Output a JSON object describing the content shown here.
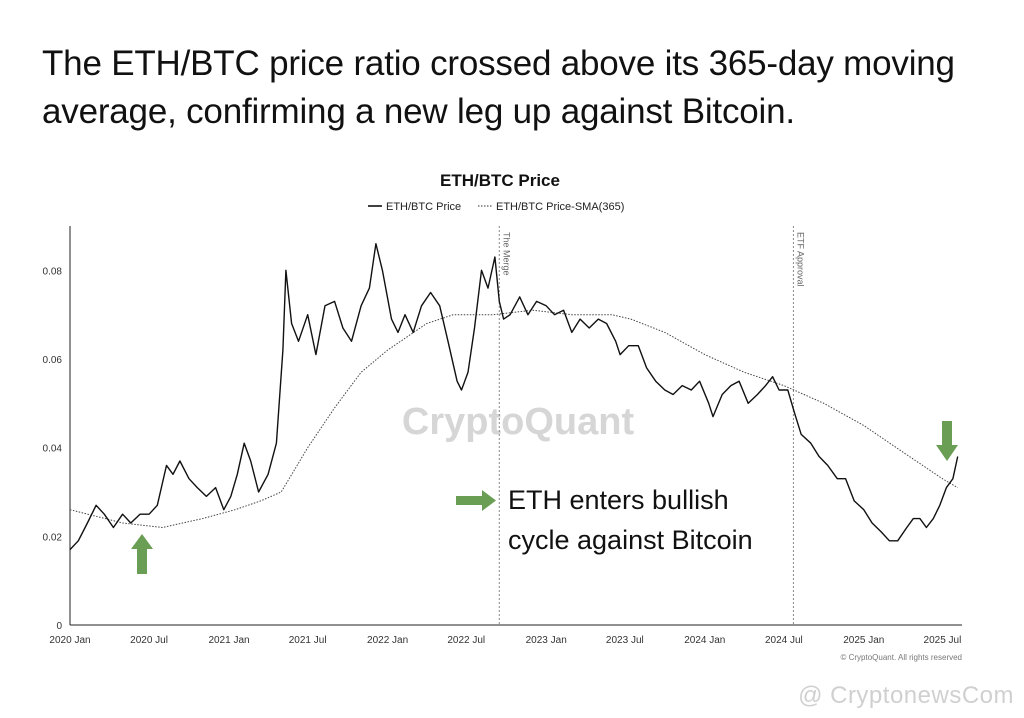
{
  "headline": "The ETH/BTC price ratio crossed above its 365-day moving average, confirming a new leg up against Bitcoin.",
  "watermarks": {
    "center": "CryptoQuant",
    "bottom_right": "@ CryptonewsCom"
  },
  "annotation": {
    "line1": "ETH enters bullish",
    "line2": "cycle against Bitcoin",
    "arrow_color": "#6a9e55"
  },
  "chart_data": {
    "type": "line",
    "title": "ETH/BTC Price",
    "legend": [
      {
        "name": "ETH/BTC Price",
        "style": "solid"
      },
      {
        "name": "ETH/BTC Price-SMA(365)",
        "style": "dotted"
      }
    ],
    "legend_position": "top-center",
    "grid": false,
    "x_tick_labels": [
      "2020 Jan",
      "2020 Jul",
      "2021 Jan",
      "2021 Jul",
      "2022 Jan",
      "2022 Jul",
      "2023 Jan",
      "2023 Jul",
      "2024 Jan",
      "2024 Jul",
      "2025 Jan",
      "2025 Jul"
    ],
    "xlim": [
      "2020-01-01",
      "2025-08-15"
    ],
    "y_tick_labels": [
      "0",
      "0.02",
      "0.04",
      "0.06",
      "0.08"
    ],
    "ylim": [
      0,
      0.09
    ],
    "vertical_markers": [
      {
        "label": "The Merge",
        "date": "2022-09-15"
      },
      {
        "label": "ETF Approval",
        "date": "2024-07-23"
      }
    ],
    "copyright": "© CryptoQuant. All rights reserved",
    "series": [
      {
        "name": "ETH/BTC Price",
        "x": [
          "2020-01-01",
          "2020-01-20",
          "2020-02-10",
          "2020-03-01",
          "2020-03-20",
          "2020-04-10",
          "2020-05-01",
          "2020-05-20",
          "2020-06-10",
          "2020-07-01",
          "2020-07-20",
          "2020-08-10",
          "2020-08-25",
          "2020-09-10",
          "2020-10-01",
          "2020-10-20",
          "2020-11-10",
          "2020-12-01",
          "2020-12-20",
          "2021-01-05",
          "2021-01-20",
          "2021-02-05",
          "2021-02-20",
          "2021-03-10",
          "2021-04-01",
          "2021-04-20",
          "2021-05-05",
          "2021-05-12",
          "2021-05-25",
          "2021-06-10",
          "2021-07-01",
          "2021-07-20",
          "2021-08-10",
          "2021-09-01",
          "2021-09-20",
          "2021-10-10",
          "2021-11-01",
          "2021-11-20",
          "2021-12-05",
          "2021-12-20",
          "2022-01-10",
          "2022-01-25",
          "2022-02-10",
          "2022-03-01",
          "2022-03-20",
          "2022-04-10",
          "2022-05-01",
          "2022-05-20",
          "2022-06-10",
          "2022-06-20",
          "2022-07-05",
          "2022-07-20",
          "2022-08-05",
          "2022-08-20",
          "2022-09-05",
          "2022-09-15",
          "2022-09-25",
          "2022-10-10",
          "2022-11-01",
          "2022-11-20",
          "2022-12-10",
          "2023-01-01",
          "2023-01-20",
          "2023-02-10",
          "2023-03-01",
          "2023-03-20",
          "2023-04-10",
          "2023-05-01",
          "2023-05-20",
          "2023-06-10",
          "2023-06-20",
          "2023-07-10",
          "2023-08-01",
          "2023-08-20",
          "2023-09-10",
          "2023-10-01",
          "2023-10-20",
          "2023-11-10",
          "2023-12-01",
          "2023-12-20",
          "2024-01-10",
          "2024-01-20",
          "2024-02-10",
          "2024-03-01",
          "2024-03-20",
          "2024-04-10",
          "2024-05-01",
          "2024-05-20",
          "2024-06-05",
          "2024-06-20",
          "2024-07-10",
          "2024-07-25",
          "2024-08-10",
          "2024-09-01",
          "2024-09-20",
          "2024-10-10",
          "2024-11-01",
          "2024-11-20",
          "2024-12-10",
          "2025-01-01",
          "2025-01-20",
          "2025-02-10",
          "2025-03-01",
          "2025-03-20",
          "2025-04-10",
          "2025-04-25",
          "2025-05-10",
          "2025-05-25",
          "2025-06-10",
          "2025-06-25",
          "2025-07-10",
          "2025-07-25",
          "2025-08-05"
        ],
        "values": [
          0.017,
          0.019,
          0.023,
          0.027,
          0.025,
          0.022,
          0.025,
          0.023,
          0.025,
          0.025,
          0.027,
          0.036,
          0.034,
          0.037,
          0.033,
          0.031,
          0.029,
          0.031,
          0.026,
          0.029,
          0.034,
          0.041,
          0.037,
          0.03,
          0.034,
          0.041,
          0.062,
          0.08,
          0.068,
          0.064,
          0.07,
          0.061,
          0.072,
          0.073,
          0.067,
          0.064,
          0.072,
          0.076,
          0.086,
          0.08,
          0.069,
          0.066,
          0.07,
          0.066,
          0.072,
          0.075,
          0.072,
          0.064,
          0.055,
          0.053,
          0.057,
          0.067,
          0.08,
          0.076,
          0.083,
          0.073,
          0.069,
          0.07,
          0.074,
          0.07,
          0.073,
          0.072,
          0.07,
          0.071,
          0.066,
          0.069,
          0.067,
          0.069,
          0.068,
          0.064,
          0.061,
          0.063,
          0.063,
          0.058,
          0.055,
          0.053,
          0.052,
          0.054,
          0.053,
          0.055,
          0.05,
          0.047,
          0.052,
          0.054,
          0.055,
          0.05,
          0.052,
          0.054,
          0.056,
          0.053,
          0.053,
          0.048,
          0.043,
          0.041,
          0.038,
          0.036,
          0.033,
          0.033,
          0.028,
          0.026,
          0.023,
          0.021,
          0.019,
          0.019,
          0.022,
          0.024,
          0.024,
          0.022,
          0.024,
          0.027,
          0.031,
          0.033,
          0.038
        ]
      },
      {
        "name": "ETH/BTC Price-SMA(365)",
        "x": [
          "2020-01-01",
          "2020-05-01",
          "2020-08-01",
          "2020-11-01",
          "2021-01-15",
          "2021-03-15",
          "2021-05-01",
          "2021-07-01",
          "2021-09-01",
          "2021-11-01",
          "2022-01-01",
          "2022-04-01",
          "2022-06-01",
          "2022-09-01",
          "2022-12-01",
          "2023-03-01",
          "2023-06-01",
          "2023-07-15",
          "2023-10-01",
          "2024-01-01",
          "2024-04-01",
          "2024-07-01",
          "2024-10-01",
          "2025-01-01",
          "2025-04-01",
          "2025-07-01",
          "2025-08-05"
        ],
        "values": [
          0.026,
          0.023,
          0.022,
          0.024,
          0.026,
          0.028,
          0.03,
          0.04,
          0.049,
          0.057,
          0.062,
          0.068,
          0.07,
          0.07,
          0.071,
          0.07,
          0.07,
          0.069,
          0.066,
          0.061,
          0.057,
          0.054,
          0.05,
          0.045,
          0.039,
          0.033,
          0.031
        ]
      }
    ]
  }
}
